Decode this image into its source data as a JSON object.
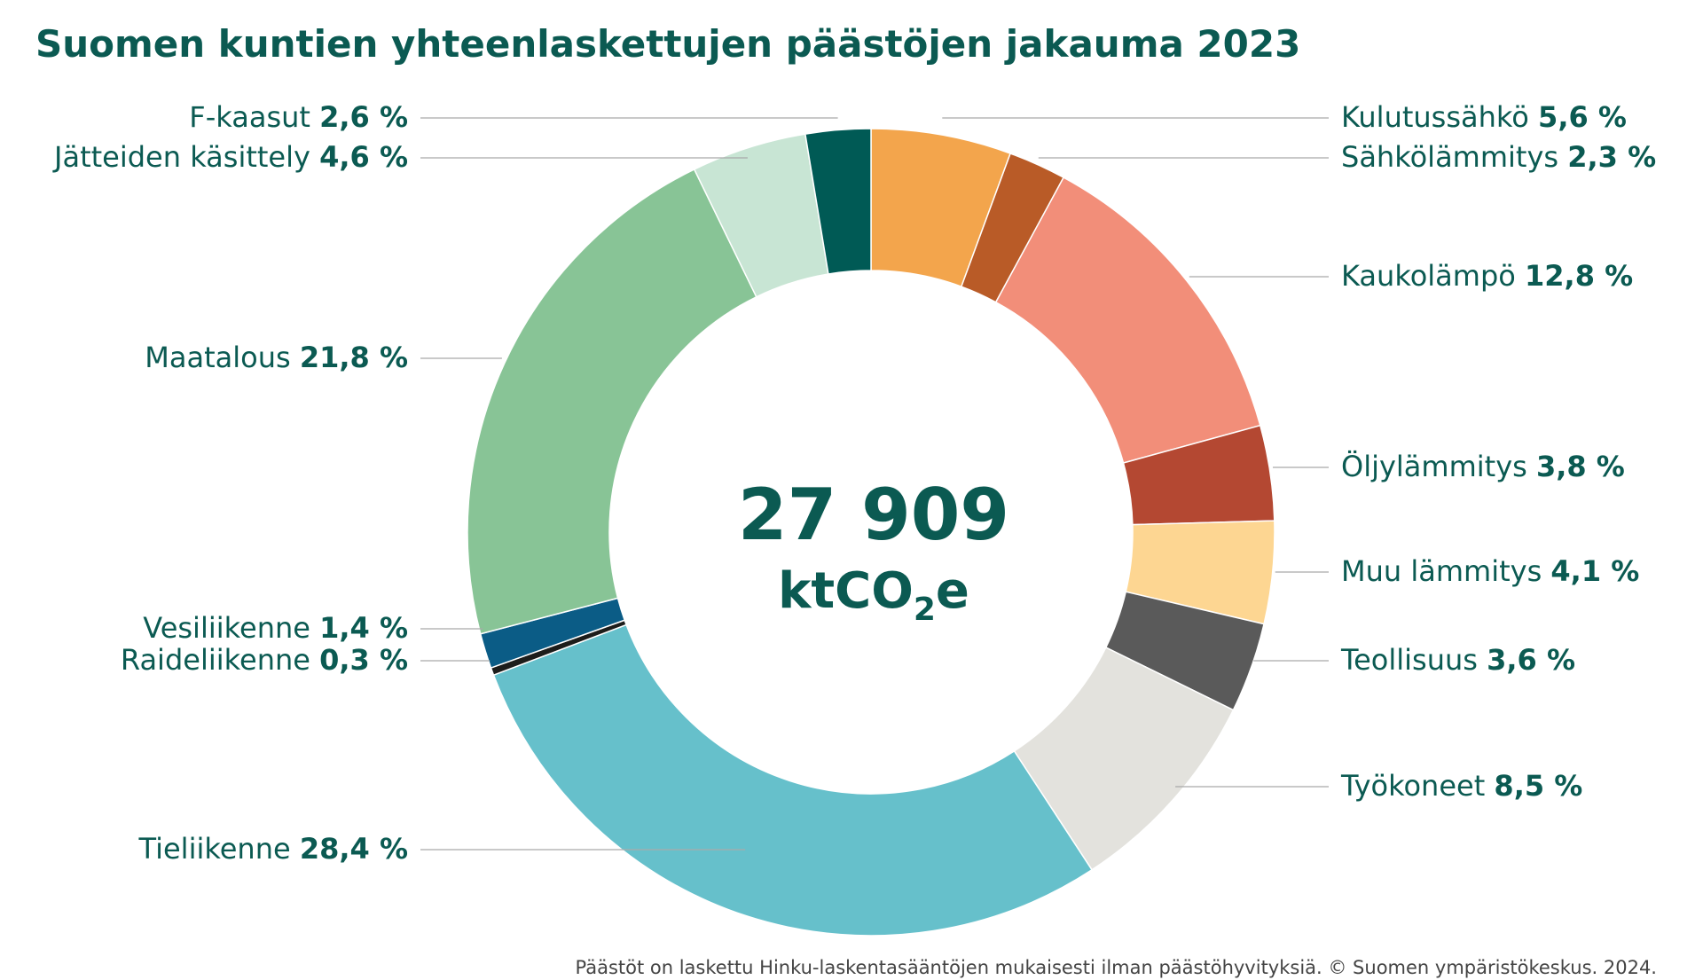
{
  "chart_data": {
    "type": "pie",
    "variant": "donut",
    "title": "Suomen kuntien yhteenlaskettujen päästöjen jakauma 2023",
    "total": {
      "value": "27 909",
      "unit_prefix": "ktCO",
      "unit_sub": "2",
      "unit_suffix": "e"
    },
    "slices": [
      {
        "name": "Kulutussähkö",
        "value": 5.6,
        "value_label": "5,6 %",
        "color": "#f3a54c",
        "side": "right"
      },
      {
        "name": "Sähkölämmitys",
        "value": 2.3,
        "value_label": "2,3 %",
        "color": "#b95b27",
        "side": "right"
      },
      {
        "name": "Kaukolämpö",
        "value": 12.8,
        "value_label": "12,8 %",
        "color": "#f28e79",
        "side": "right"
      },
      {
        "name": "Öljylämmitys",
        "value": 3.8,
        "value_label": "3,8 %",
        "color": "#b44832",
        "side": "right"
      },
      {
        "name": "Muu lämmitys",
        "value": 4.1,
        "value_label": "4,1 %",
        "color": "#fdd692",
        "side": "right"
      },
      {
        "name": "Teollisuus",
        "value": 3.6,
        "value_label": "3,6 %",
        "color": "#5a5a5a",
        "side": "right"
      },
      {
        "name": "Työkoneet",
        "value": 8.5,
        "value_label": "8,5 %",
        "color": "#e3e2dd",
        "side": "right"
      },
      {
        "name": "Tieliikenne",
        "value": 28.4,
        "value_label": "28,4 %",
        "color": "#66c0cb",
        "side": "left"
      },
      {
        "name": "Raideliikenne",
        "value": 0.3,
        "value_label": "0,3 %",
        "color": "#1d1d1b",
        "side": "left"
      },
      {
        "name": "Vesiliikenne",
        "value": 1.4,
        "value_label": "1,4 %",
        "color": "#0b5c86",
        "side": "left"
      },
      {
        "name": "Maatalous",
        "value": 21.8,
        "value_label": "21,8 %",
        "color": "#88c496",
        "side": "left"
      },
      {
        "name": "Jätteiden käsittely",
        "value": 4.6,
        "value_label": "4,6 %",
        "color": "#c8e5d4",
        "side": "left"
      },
      {
        "name": "F-kaasut",
        "value": 2.6,
        "value_label": "2,6 %",
        "color": "#005a55",
        "side": "left"
      }
    ]
  },
  "footer": "Päästöt on laskettu Hinku-laskentasääntöjen mukaisesti ilman päästöhyvityksiä. © Suomen ympäristökeskus. 2024."
}
